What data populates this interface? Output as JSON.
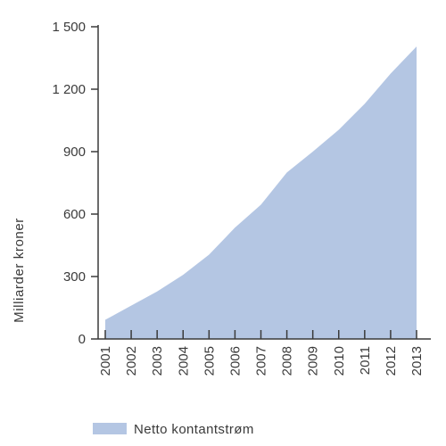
{
  "chart_data": {
    "type": "area",
    "categories": [
      "2001",
      "2002",
      "2003",
      "2004",
      "2005",
      "2006",
      "2007",
      "2008",
      "2009",
      "2010",
      "2011",
      "2012",
      "2013"
    ],
    "series": [
      {
        "name": "Netto kontantstrøm",
        "values": [
          92,
          160,
          228,
          308,
          405,
          535,
          645,
          800,
          900,
          1005,
          1130,
          1275,
          1405
        ]
      }
    ],
    "ylabel": "Milliarder kroner",
    "xlabel": "",
    "ylim": [
      0,
      1500
    ],
    "yticks": [
      0,
      300,
      600,
      900,
      1200,
      1500
    ],
    "ytick_labels": [
      "0",
      "300",
      "600",
      "900",
      "1 200",
      "1 500"
    ],
    "grid": false,
    "legend_position": "bottom-left",
    "colors": {
      "area": "#b4c6e3",
      "axis": "#3a3a3a",
      "text": "#3a3a3a"
    }
  }
}
